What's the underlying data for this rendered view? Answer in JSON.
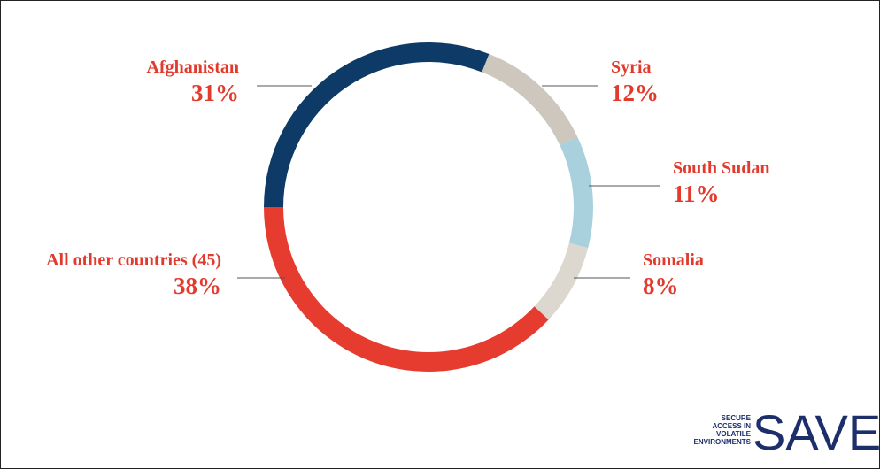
{
  "chart_data": {
    "type": "donut",
    "categories": [
      "Afghanistan",
      "Syria",
      "South Sudan",
      "Somalia",
      "All other countries (45)"
    ],
    "values": [
      31,
      12,
      11,
      8,
      38
    ],
    "value_labels": [
      "31%",
      "12%",
      "11%",
      "8%",
      "38%"
    ],
    "colors": [
      "#0d3a66",
      "#cdc7bd",
      "#a9d0dd",
      "#dcd8cf",
      "#e63c30"
    ]
  },
  "logo": {
    "tagline": [
      "SECURE",
      "ACCESS IN",
      "VOLATILE",
      "ENVIRONMENTS"
    ],
    "name": "SAVE"
  }
}
